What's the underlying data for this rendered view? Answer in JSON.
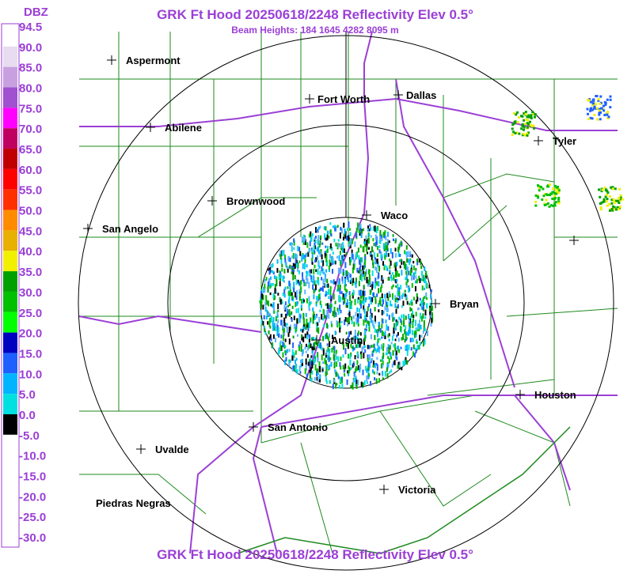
{
  "header": {
    "title": "GRK Ft Hood 20250618/2248 Reflectivity Elev 0.5°",
    "subtitle": "Beam Heights: 184 1645 4282 8095 m"
  },
  "footer": {
    "title": "GRK Ft Hood 20250618/2248 Reflectivity Elev 0.5°"
  },
  "legend": {
    "title": "DBZ",
    "labels": [
      "94.5",
      "90.0",
      "85.0",
      "80.0",
      "75.0",
      "70.0",
      "65.0",
      "60.0",
      "55.0",
      "50.0",
      "45.0",
      "40.0",
      "35.0",
      "30.0",
      "25.0",
      "20.0",
      "15.0",
      "10.0",
      "5.0",
      "0.0",
      "-5.0",
      "-10.0",
      "-15.0",
      "-20.0",
      "-25.0",
      "-30.0"
    ]
  },
  "cities": [
    "Aspermont",
    "Fort Worth",
    "Dallas",
    "Abilene",
    "Tyler",
    "Brownwood",
    "Waco",
    "San Angelo",
    "Bryan",
    "Austin",
    "Houston",
    "San Antonio",
    "Uvalde",
    "Victoria",
    "Piedras Negras"
  ]
}
